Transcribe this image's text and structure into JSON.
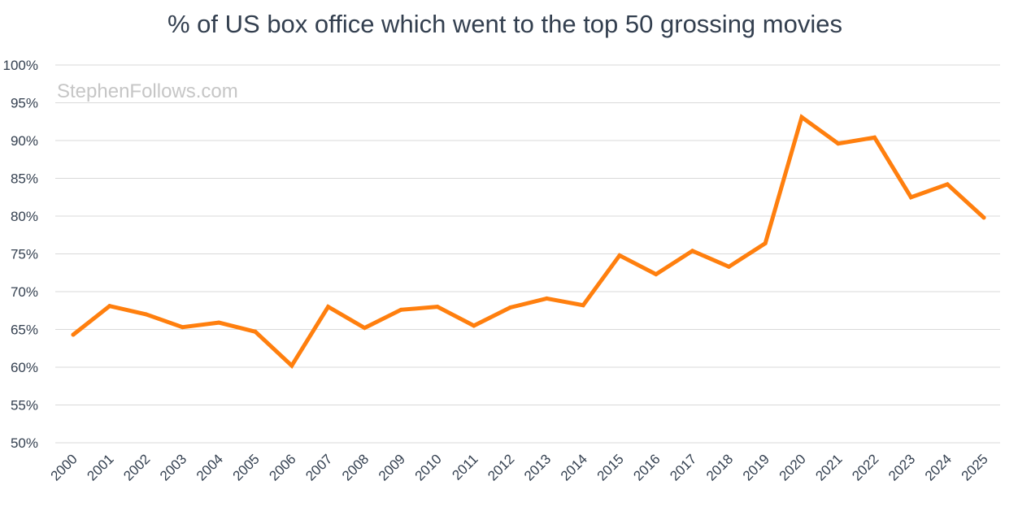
{
  "chart_data": {
    "type": "line",
    "title": "% of US box office which went to the top 50 grossing movies",
    "xlabel": "",
    "ylabel": "",
    "watermark": "StephenFollows.com",
    "ylim": [
      50,
      100
    ],
    "yticks": [
      "50%",
      "55%",
      "60%",
      "65%",
      "70%",
      "75%",
      "80%",
      "85%",
      "90%",
      "95%",
      "100%"
    ],
    "ytick_values": [
      50,
      55,
      60,
      65,
      70,
      75,
      80,
      85,
      90,
      95,
      100
    ],
    "grid": true,
    "legend": "none",
    "colors": {
      "series": "#ff7f0e",
      "grid": "#d9d9d9",
      "text": "#333f4f",
      "watermark": "#c6c6c6"
    },
    "categories": [
      "2000",
      "2001",
      "2002",
      "2003",
      "2004",
      "2005",
      "2006",
      "2007",
      "2008",
      "2009",
      "2010",
      "2011",
      "2012",
      "2013",
      "2014",
      "2015",
      "2016",
      "2017",
      "2018",
      "2019",
      "2020",
      "2021",
      "2022",
      "2023",
      "2024",
      "2025"
    ],
    "series": [
      {
        "values": [
          64.3,
          68.1,
          67.0,
          65.3,
          65.9,
          64.7,
          60.2,
          68.0,
          65.2,
          67.6,
          68.0,
          65.5,
          67.9,
          69.1,
          68.2,
          74.8,
          72.3,
          75.4,
          73.3,
          76.4,
          93.1,
          89.6,
          90.4,
          82.5,
          84.2,
          79.8
        ]
      }
    ]
  }
}
